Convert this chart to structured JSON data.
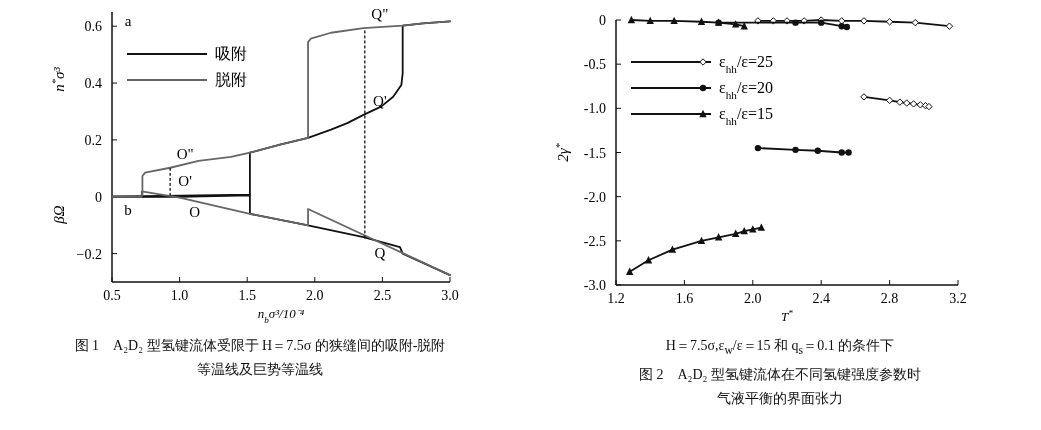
{
  "chart_data": [
    {
      "type": "line",
      "xlabel": "n$_{b}$σ³/10⁻⁴",
      "ylabel": [
        "n$^{*}$σ³",
        "βΩ"
      ],
      "xlim": [
        0.5,
        3.0
      ],
      "ylim": [
        -0.3,
        0.65
      ],
      "xticks": [
        0.5,
        {
          "value": 1.0,
          "label": "1.0"
        },
        1.5,
        {
          "value": 2.0,
          "label": "2.0"
        },
        2.5,
        {
          "value": 3.0,
          "label": "3.0"
        }
      ],
      "yticks": [
        {
          "value": -0.2,
          "label": "−0.2"
        },
        0,
        0.2,
        0.4,
        0.6
      ],
      "legend": "top left",
      "marker": "none",
      "series": [
        {
          "name": "吸附",
          "color": "#111111",
          "x": [
            0.5,
            1.52,
            1.52,
            1.75,
            1.95,
            2.12,
            2.24,
            2.36,
            2.49,
            2.58,
            2.64,
            2.65,
            2.65,
            2.8,
            3.0
          ],
          "values": [
            0,
            0.007,
            0.155,
            0.184,
            0.207,
            0.236,
            0.259,
            0.288,
            0.317,
            0.352,
            0.393,
            0.434,
            0.602,
            0.61,
            0.617
          ]
        },
        {
          "name": "脱附",
          "color": "#666666",
          "x": [
            3.0,
            2.8,
            2.65,
            2.36,
            2.12,
            1.97,
            1.95,
            1.95,
            1.75,
            1.52,
            1.38,
            1.14,
            0.93,
            0.745,
            0.725,
            0.725,
            0.5
          ],
          "values": [
            0.617,
            0.61,
            0.602,
            0.593,
            0.577,
            0.556,
            0.544,
            0.207,
            0.184,
            0.155,
            0.14,
            0.126,
            0.102,
            0.085,
            0.073,
            0,
            0
          ]
        },
        {
          "color": "#111111",
          "x": [
            0.5,
            1.0,
            1.52,
            1.52,
            1.95,
            2.36,
            2.63,
            2.65,
            3.0
          ],
          "values": [
            0,
            0,
            0.005,
            -0.06,
            -0.101,
            -0.142,
            -0.177,
            -0.2,
            -0.276
          ]
        },
        {
          "color": "#666666",
          "x": [
            3.0,
            1.95,
            1.95,
            1.52,
            1.0,
            0.72,
            0.72,
            0.5
          ],
          "values": [
            -0.276,
            -0.043,
            -0.101,
            -0.06,
            -0.003,
            0.019,
            0,
            0
          ]
        },
        {
          "color": "#111111",
          "line_style": "dotted",
          "x": [
            0.93,
            0.93
          ],
          "values": [
            0.005,
            0.102
          ]
        },
        {
          "color": "#111111",
          "line_style": "dotted",
          "x": [
            2.37,
            2.37
          ],
          "values": [
            -0.145,
            0.593
          ]
        }
      ],
      "annotations": [
        "a",
        "b",
        {
          "text": "O\"",
          "x": 0.93,
          "y": 0.102
        },
        {
          "text": "O'",
          "x": 0.93,
          "y": 0.005
        },
        {
          "text": "O",
          "x": 1.0,
          "y": 0
        },
        {
          "text": "Q\"",
          "x": 2.37,
          "y": 0.593
        },
        {
          "text": "Q'",
          "x": 2.37,
          "y": 0.288
        },
        {
          "text": "Q",
          "x": 2.37,
          "y": -0.145
        },
        "图 1　A₂D₂ 型氢键流体受限于 H＝7.5σ 的狭缝间的吸附-脱附等温线及巨势等温线"
      ]
    },
    {
      "type": "line",
      "xlabel": "T$^{*}$",
      "ylabel": "2γ$^{*}$",
      "xlim": [
        1.2,
        3.2
      ],
      "ylim": [
        -3.0,
        0
      ],
      "xticks": [
        1.2,
        1.6,
        {
          "value": 2.0,
          "label": "2.0"
        },
        2.4,
        2.8,
        3.2
      ],
      "yticks": [
        {
          "value": -3.0,
          "label": "-3.0"
        },
        {
          "value": -2.5,
          "label": "-2.5"
        },
        {
          "value": -2.0,
          "label": "-2.0"
        },
        {
          "value": -1.5,
          "label": "-1.5"
        },
        {
          "value": -1.0,
          "label": "-1.0"
        },
        {
          "value": -0.5,
          "label": "-0.5"
        },
        0
      ],
      "legend": "top left",
      "series": [
        {
          "name": "ε$_{hh}$/ε=25",
          "color": "#111111",
          "marker": "diamond",
          "x": [
            2.65,
            2.8,
            2.86,
            2.9,
            2.94,
            2.98,
            3.01,
            3.03,
            null,
            2.03,
            2.12,
            2.2,
            2.3,
            2.4,
            2.52,
            2.65,
            2.8,
            2.95,
            3.15
          ],
          "values": [
            -0.87,
            -0.91,
            -0.93,
            -0.94,
            -0.95,
            -0.96,
            -0.97,
            -0.98,
            null,
            -0.01,
            -0.01,
            -0.01,
            -0.01,
            0,
            -0.01,
            -0.01,
            -0.02,
            -0.03,
            -0.07
          ]
        },
        {
          "name": "ε$_{hh}$/ε=20",
          "color": "#111111",
          "marker": "circle",
          "x": [
            2.03,
            2.25,
            2.38,
            2.52,
            2.56,
            null,
            1.8,
            2.25,
            2.4,
            2.52,
            2.55
          ],
          "values": [
            -1.45,
            -1.47,
            -1.48,
            -1.5,
            -1.5,
            null,
            -0.03,
            -0.03,
            -0.03,
            -0.07,
            -0.08
          ]
        },
        {
          "name": "ε$_{hh}$/ε=15",
          "color": "#111111",
          "marker": "triangle",
          "x": [
            1.28,
            1.39,
            1.53,
            1.7,
            1.8,
            1.9,
            1.95,
            2.0,
            2.05,
            null,
            1.29,
            1.4,
            1.54,
            1.7,
            1.8,
            1.9,
            1.95
          ],
          "values": [
            -2.85,
            -2.72,
            -2.6,
            -2.5,
            -2.46,
            -2.42,
            -2.39,
            -2.37,
            -2.35,
            null,
            0,
            -0.01,
            -0.01,
            -0.02,
            -0.03,
            -0.05,
            -0.07
          ]
        }
      ],
      "annotations": [
        "H＝7.5σ,ε$_{w}$/ε＝15 和 q$_{s}$＝0.1 的条件下",
        "图 2　A₂D₂ 型氢键流体在不同氢键强度参数时气液平衡的界面张力"
      ]
    }
  ]
}
